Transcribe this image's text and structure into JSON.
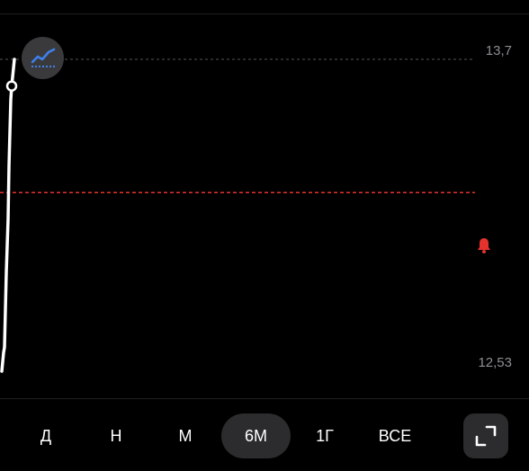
{
  "chart_data": {
    "type": "line",
    "y_axis_labels": [
      "13,7",
      "12,53"
    ],
    "ylim": [
      12.53,
      13.7
    ],
    "alert_level": 13.2,
    "line_color": "#ffffff",
    "alert_color": "#e5322d",
    "series": [
      {
        "values": [
          12.53,
          12.6,
          12.62,
          12.9,
          13.1,
          13.3,
          13.55,
          13.6,
          13.7
        ],
        "marker_index": 7
      }
    ]
  },
  "chart_type_toggle": {
    "icon": "chart-line-icon",
    "color": "#3f80ea"
  },
  "periods": {
    "items": [
      {
        "label": "Д"
      },
      {
        "label": "Н"
      },
      {
        "label": "М"
      },
      {
        "label": "6М"
      },
      {
        "label": "1Г"
      },
      {
        "label": "ВСЕ"
      }
    ],
    "selected": "6М"
  },
  "expand": {
    "icon": "expand-icon"
  }
}
